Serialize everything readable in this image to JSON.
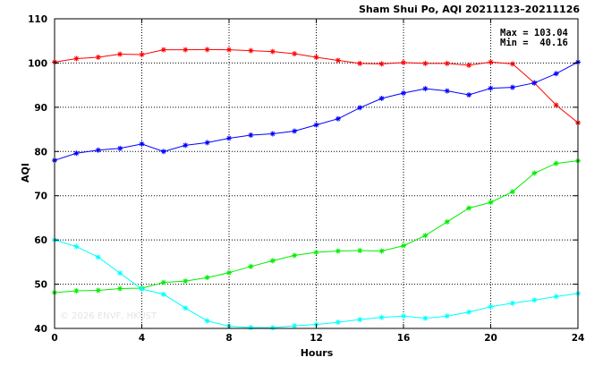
{
  "chart_data": {
    "type": "line",
    "title": "Sham Shui Po, AQI 20211123–20211126",
    "xlabel": "Hours",
    "ylabel": "AQI",
    "xlim": [
      0,
      24
    ],
    "ylim": [
      40,
      110
    ],
    "xticks": [
      0,
      4,
      8,
      12,
      16,
      20,
      24
    ],
    "yticks": [
      40,
      50,
      60,
      70,
      80,
      90,
      100,
      110
    ],
    "grid": true,
    "annotations": {
      "max_label": "Max = 103.04",
      "min_label": "Min =  40.16",
      "watermark": "© 2026 ENVF, HKUST"
    },
    "x": [
      0,
      1,
      2,
      3,
      4,
      5,
      6,
      7,
      8,
      9,
      10,
      11,
      12,
      13,
      14,
      15,
      16,
      17,
      18,
      19,
      20,
      21,
      22,
      23,
      24
    ],
    "series": [
      {
        "color": "#ff0000",
        "values": [
          100.2,
          101.0,
          101.3,
          102.0,
          101.9,
          103.0,
          103.0,
          103.04,
          103.0,
          102.8,
          102.6,
          102.1,
          101.3,
          100.6,
          99.9,
          99.8,
          100.1,
          99.9,
          99.9,
          99.5,
          100.2,
          99.8,
          95.5,
          90.5,
          86.5
        ]
      },
      {
        "color": "#0000ff",
        "values": [
          78.0,
          79.6,
          80.3,
          80.7,
          81.7,
          80.0,
          81.4,
          82.0,
          83.0,
          83.7,
          84.0,
          84.6,
          86.0,
          87.4,
          89.9,
          92.0,
          93.2,
          94.2,
          93.7,
          92.8,
          94.3,
          94.5,
          95.5,
          97.6,
          100.2
        ]
      },
      {
        "color": "#00ee00",
        "values": [
          48.1,
          48.5,
          48.6,
          49.0,
          49.1,
          50.4,
          50.7,
          51.5,
          52.6,
          54.0,
          55.3,
          56.5,
          57.2,
          57.5,
          57.6,
          57.5,
          58.7,
          61.0,
          64.1,
          67.2,
          68.5,
          70.9,
          75.1,
          77.3,
          77.9
        ]
      },
      {
        "color": "#00ffff",
        "values": [
          60.0,
          58.5,
          56.1,
          52.5,
          48.9,
          47.7,
          44.6,
          41.7,
          40.5,
          40.2,
          40.16,
          40.6,
          40.9,
          41.4,
          42.0,
          42.5,
          42.8,
          42.3,
          42.8,
          43.7,
          44.9,
          45.7,
          46.4,
          47.2,
          47.9
        ]
      }
    ]
  }
}
